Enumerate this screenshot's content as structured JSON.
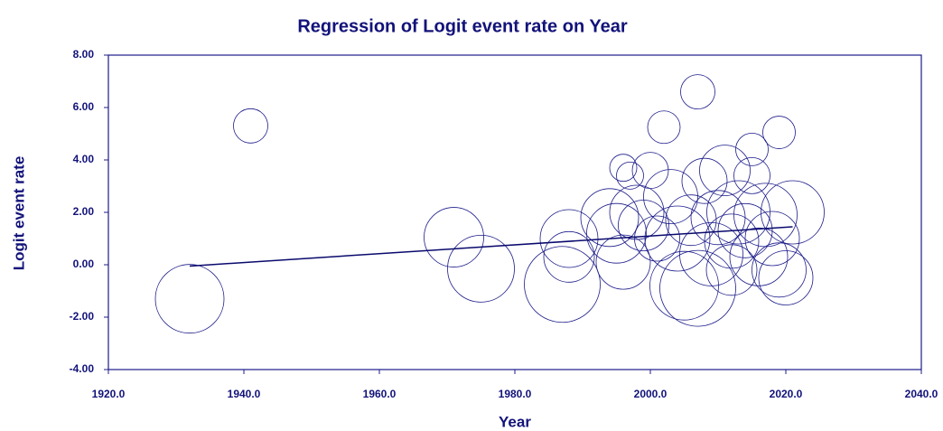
{
  "chart_data": {
    "type": "bubble",
    "title": "Regression of Logit event rate on Year",
    "x_label": "Year",
    "y_label": "Logit event rate",
    "color": "#1c1c8a",
    "x": [
      1932,
      1941,
      1971,
      1975,
      1987,
      1988,
      1988,
      1994,
      1995,
      1996,
      1996,
      1997,
      1998,
      1999,
      2000,
      2001,
      2002,
      2003,
      2004,
      2005,
      2006,
      2007,
      2007,
      2008,
      2009,
      2010,
      2011,
      2012,
      2012,
      2013,
      2014,
      2015,
      2015,
      2016,
      2017,
      2018,
      2019,
      2019,
      2020,
      2021
    ],
    "values": [
      -1.3,
      5.3,
      1.05,
      -0.15,
      -0.75,
      1.0,
      0.3,
      1.8,
      1.2,
      3.7,
      0.1,
      3.4,
      2.0,
      1.5,
      3.6,
      1.0,
      5.25,
      2.6,
      1.0,
      -0.8,
      1.7,
      6.6,
      -0.9,
      3.2,
      0.4,
      1.8,
      3.6,
      0.9,
      -0.2,
      2.0,
      1.3,
      4.4,
      3.4,
      0.3,
      1.9,
      1.0,
      5.05,
      -0.2,
      -0.5,
      2.0
    ],
    "sizes": [
      38,
      19,
      33,
      37,
      42,
      32,
      28,
      32,
      33,
      15,
      30,
      15,
      30,
      28,
      20,
      25,
      18,
      30,
      36,
      38,
      28,
      19,
      42,
      25,
      35,
      30,
      28,
      30,
      28,
      35,
      30,
      18,
      20,
      32,
      35,
      30,
      18,
      30,
      30,
      35
    ],
    "regression_line": {
      "x": [
        1932,
        2021
      ],
      "y": [
        -0.05,
        1.45
      ]
    },
    "xlim": [
      1920,
      2040
    ],
    "xticks": [
      {
        "value": 1920,
        "label": "1920.0"
      },
      {
        "value": 1940,
        "label": "1940.0"
      },
      {
        "value": 1960,
        "label": "1960.0"
      },
      {
        "value": 1980,
        "label": "1980.0"
      },
      {
        "value": 2000,
        "label": "2000.0"
      },
      {
        "value": 2020,
        "label": "2020.0"
      },
      {
        "value": 2040,
        "label": "2040.0"
      }
    ],
    "ylim": [
      -4,
      8
    ],
    "yticks": [
      {
        "value": -4,
        "label": "-4.00"
      },
      {
        "value": -2,
        "label": "-2.00"
      },
      {
        "value": 0,
        "label": "0.00"
      },
      {
        "value": 2,
        "label": "2.00"
      },
      {
        "value": 4,
        "label": "4.00"
      },
      {
        "value": 6,
        "label": "6.00"
      },
      {
        "value": 8,
        "label": "8.00"
      }
    ]
  }
}
